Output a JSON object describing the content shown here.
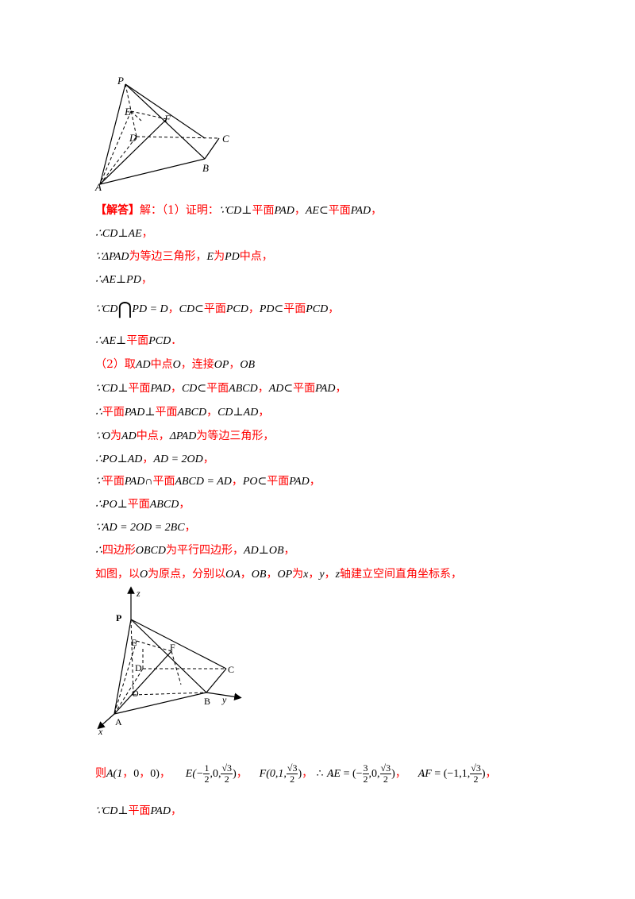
{
  "figure1": {
    "labels": {
      "P": "P",
      "E": "E",
      "F": "F",
      "D": "D",
      "C": "C",
      "B": "B",
      "A": "A"
    }
  },
  "figure2": {
    "labels": {
      "z": "z",
      "P": "P",
      "E": "E",
      "F": "F",
      "D": "D",
      "C": "C",
      "O": "O",
      "B": "B",
      "y": "y",
      "A": "A",
      "x": "x"
    }
  },
  "lines": {
    "l1": {
      "tag": "【解答】",
      "t1": "解：（1）证明：",
      "m1": "∵CD⊥",
      "t2": "平面",
      "m2": "PAD",
      "t3": "，",
      "m3": "AE⊂",
      "t4": "平面",
      "m4": "PAD",
      "t5": "，"
    },
    "l2": {
      "m1": "∴CD⊥AE",
      "t1": "，"
    },
    "l3": {
      "m1": "∵ΔPAD",
      "t1": "为等边三角形，",
      "m2": "E",
      "t2": "为",
      "m3": "PD",
      "t3": "中点，"
    },
    "l4": {
      "m1": "∴AE⊥PD",
      "t1": "，"
    },
    "l5": {
      "m1": "∵CD",
      "m2": "PD = D",
      "t1": "，",
      "m3": "CD⊂",
      "t2": "平面",
      "m4": "PCD",
      "t3": "，",
      "m5": "PD⊂",
      "t4": "平面",
      "m6": "PCD",
      "t5": "，"
    },
    "l6": {
      "m1": "∴AE⊥",
      "t1": "平面",
      "m2": "PCD",
      "t2": "．"
    },
    "l7": {
      "t1": "（2）取",
      "m1": "AD",
      "t2": "中点",
      "m2": "O",
      "t3": "，连接",
      "m3": "OP",
      "t4": "，",
      "m4": "OB"
    },
    "l8": {
      "m1": "∵CD⊥",
      "t1": "平面",
      "m2": "PAD",
      "t2": "，",
      "m3": "CD⊂",
      "t3": "平面",
      "m4": "ABCD",
      "t4": "，",
      "m5": "AD⊂",
      "t5": "平面",
      "m6": "PAD",
      "t6": "，"
    },
    "l9": {
      "m1": "∴",
      "t1": "平面",
      "m2": "PAD⊥",
      "t2": "平面",
      "m3": "ABCD",
      "t3": "，",
      "m4": "CD⊥AD",
      "t4": "，"
    },
    "l10": {
      "m1": "∵O",
      "t1": "为",
      "m2": "AD",
      "t2": "中点，",
      "m3": "ΔPAD",
      "t3": "为等边三角形，"
    },
    "l11": {
      "m1": "∴PO⊥AD",
      "t1": "，",
      "m2": "AD = 2OD",
      "t2": "，"
    },
    "l12": {
      "m1": "∵",
      "t1": "平面",
      "m2": "PAD∩",
      "t2": "平面",
      "m3": "ABCD = AD",
      "t3": "，",
      "m4": "PO⊂",
      "t4": "平面",
      "m5": "PAD",
      "t5": "，"
    },
    "l13": {
      "m1": "∴PO⊥",
      "t1": "平面",
      "m2": "ABCD",
      "t2": "，"
    },
    "l14": {
      "m1": "∵AD = 2OD = 2BC",
      "t1": "，"
    },
    "l15": {
      "m1": "∴",
      "t1": "四边形",
      "m2": "OBCD",
      "t2": "为平行四边形，",
      "m3": "AD⊥OB",
      "t3": "，"
    },
    "l16": {
      "t1": "如图，以",
      "m1": "O",
      "t2": "为原点，分别以",
      "m2": "OA",
      "t3": "，",
      "m3": "OB",
      "t4": "，",
      "m4": "OP",
      "t5": "为",
      "m5": "x",
      "t6": "，",
      "m6": "y",
      "t7": "，",
      "m7": "z",
      "t8": "轴建立空间直角坐标系，"
    },
    "l17": {
      "t1": "则",
      "m1": "A(1",
      "t2": "，",
      "m2": "0",
      "t3": "，",
      "m3": "0)",
      "t4": "，",
      "m4": "E(−",
      "f1n": "1",
      "f1d": "2",
      "m5": ",0,",
      "f2n": "√3",
      "f2d": "2",
      "m6": ")",
      "t5": "，",
      "m7": "F(0,1,",
      "f3n": "√3",
      "f3d": "2",
      "m8": ")",
      "t6": "，",
      "m9": "∴",
      "m10": "AE",
      "m11": " = (−",
      "f4n": "3",
      "f4d": "2",
      "m12": ",0,",
      "f5n": "√3",
      "f5d": "2",
      "m13": ")",
      "t7": "，",
      "m14": "AF",
      "m15": " = (−1,1,",
      "f6n": "√3",
      "f6d": "2",
      "m16": ")",
      "t8": "，"
    },
    "l18": {
      "m1": "∵CD⊥",
      "t1": "平面",
      "m2": "PAD",
      "t2": "，"
    }
  }
}
